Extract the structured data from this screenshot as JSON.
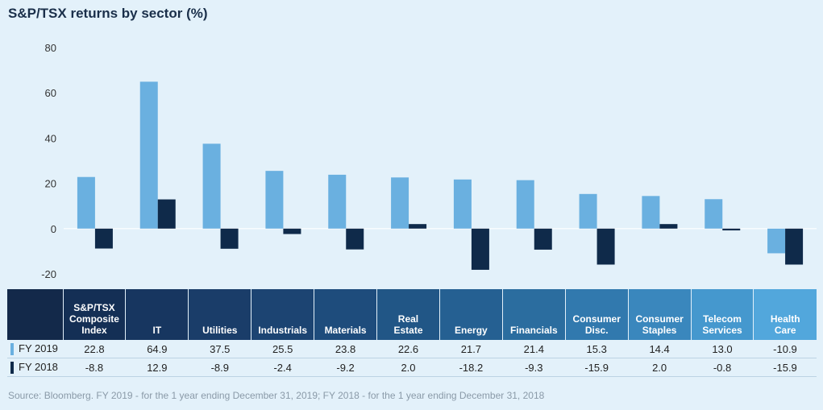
{
  "title": "S&P/TSX returns by sector (%)",
  "source": "Source: Bloomberg. FY 2019 - for the 1 year ending December 31, 2019; FY 2018 - for the 1 year ending December 31, 2018",
  "colors": {
    "fy2019": "#6ab0e0",
    "fy2018": "#0f2a4a",
    "background": "#e3f1fa"
  },
  "header_colors": [
    "#13294a",
    "#142f55",
    "#173660",
    "#1a3d69",
    "#1c4472",
    "#1e4c7c",
    "#215686",
    "#256092",
    "#2b6d9f",
    "#3179ae",
    "#3a87bd",
    "#4598ce",
    "#52a7dc"
  ],
  "chart_data": {
    "type": "bar",
    "title": "S&P/TSX returns by sector (%)",
    "categories": [
      "S&P/TSX Composite Index",
      "IT",
      "Utilities",
      "Industrials",
      "Materials",
      "Real Estate",
      "Energy",
      "Financials",
      "Consumer Disc.",
      "Consumer Staples",
      "Telecom Services",
      "Health Care"
    ],
    "category_headers": [
      "S&P/TSX\nComposite\nIndex",
      "IT",
      "Utilities",
      "Industrials",
      "Materials",
      "Real\nEstate",
      "Energy",
      "Financials",
      "Consumer\nDisc.",
      "Consumer\nStaples",
      "Telecom\nServices",
      "Health\nCare"
    ],
    "series": [
      {
        "name": "FY 2019",
        "values": [
          22.8,
          64.9,
          37.5,
          25.5,
          23.8,
          22.6,
          21.7,
          21.4,
          15.3,
          14.4,
          13.0,
          -10.9
        ],
        "labels": [
          "22.8",
          "64.9",
          "37.5",
          "25.5",
          "23.8",
          "22.6",
          "21.7",
          "21.4",
          "15.3",
          "14.4",
          "13.0",
          "-10.9"
        ]
      },
      {
        "name": "FY 2018",
        "values": [
          -8.8,
          12.9,
          -8.9,
          -2.4,
          -9.2,
          2.0,
          -18.2,
          -9.3,
          -15.9,
          2.0,
          -0.8,
          -15.9
        ],
        "labels": [
          "-8.8",
          "12.9",
          "-8.9",
          "-2.4",
          "-9.2",
          "2.0",
          "-18.2",
          "-9.3",
          "-15.9",
          "2.0",
          "-0.8",
          "-15.9"
        ]
      }
    ],
    "ylim": [
      -20,
      80
    ],
    "yticks": [
      "80",
      "60",
      "40",
      "20",
      "0",
      "-20"
    ],
    "grid": false,
    "legend": "table-rows"
  }
}
